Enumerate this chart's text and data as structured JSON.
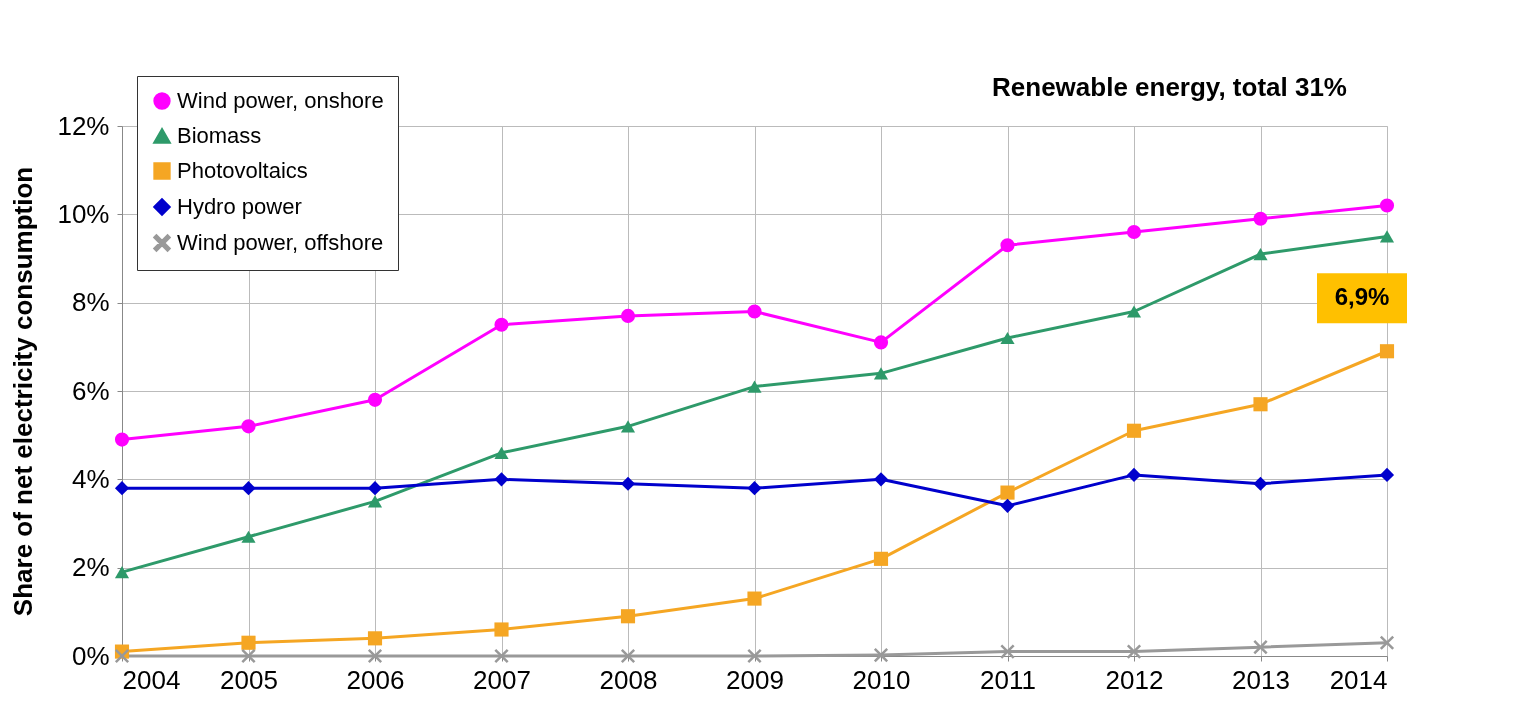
{
  "chart_data": {
    "type": "line",
    "ylabel": "Share of net electricity consumption",
    "x": [
      2004,
      2005,
      2006,
      2007,
      2008,
      2009,
      2010,
      2011,
      2012,
      2013,
      2014
    ],
    "series": [
      {
        "name": "Wind power, onshore",
        "color": "#ff00ff",
        "marker": "circle",
        "values": [
          4.9,
          5.2,
          5.8,
          7.5,
          7.7,
          7.8,
          7.1,
          9.3,
          9.6,
          9.9,
          10.2
        ]
      },
      {
        "name": "Biomass",
        "color": "#2e9a6a",
        "marker": "triangle",
        "values": [
          1.9,
          2.7,
          3.5,
          4.6,
          5.2,
          6.1,
          6.4,
          7.2,
          7.8,
          9.1,
          9.5
        ]
      },
      {
        "name": "Photovoltaics",
        "color": "#f5a623",
        "marker": "square",
        "values": [
          0.1,
          0.3,
          0.4,
          0.6,
          0.9,
          1.3,
          2.2,
          3.7,
          5.1,
          5.7,
          6.9
        ]
      },
      {
        "name": "Hydro power",
        "color": "#0000cc",
        "marker": "diamond",
        "values": [
          3.8,
          3.8,
          3.8,
          4.0,
          3.9,
          3.8,
          4.0,
          3.4,
          4.1,
          3.9,
          4.1
        ]
      },
      {
        "name": "Wind power, offshore",
        "color": "#999999",
        "marker": "cross",
        "values": [
          0,
          0,
          0,
          0,
          0,
          0,
          0.02,
          0.1,
          0.1,
          0.2,
          0.3
        ]
      }
    ],
    "xlim": [
      2004,
      2014
    ],
    "xticks": [
      2004,
      2005,
      2006,
      2007,
      2008,
      2009,
      2010,
      2011,
      2012,
      2013,
      2014
    ],
    "ylim": [
      0,
      12
    ],
    "yticks": [
      {
        "value": 0,
        "label": "0%"
      },
      {
        "value": 2,
        "label": "2%"
      },
      {
        "value": 4,
        "label": "4%"
      },
      {
        "value": 6,
        "label": "6%"
      },
      {
        "value": 8,
        "label": "8%"
      },
      {
        "value": 10,
        "label": "10%"
      },
      {
        "value": 12,
        "label": "12%"
      }
    ],
    "grid": true,
    "legend": "top left",
    "annotations": [
      "Renewable energy, total   31%",
      {
        "text": "6,9%",
        "x": 2014,
        "y": 6.9
      }
    ]
  }
}
